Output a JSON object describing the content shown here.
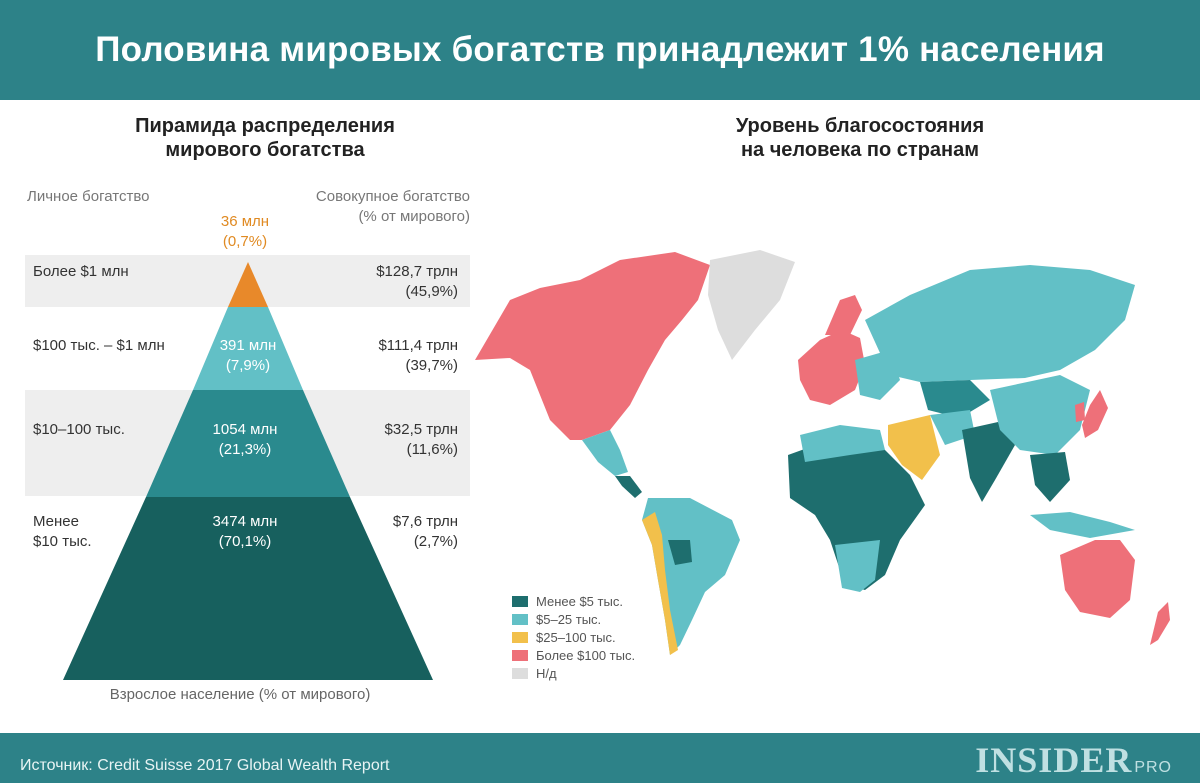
{
  "header": {
    "title": "Половина мировых богатств принадлежит 1% населения"
  },
  "pyramid": {
    "title_line1": "Пирамида распределения",
    "title_line2": "мирового богатства",
    "left_col": "Личное богатство",
    "right_col_line1": "Совокупное богатство",
    "right_col_line2": "(% от мирового)",
    "x_label": "Взрослое население (% от мирового)"
  },
  "map": {
    "title_line1": "Уровень благосостояния",
    "title_line2": "на человека по странам",
    "legend": [
      {
        "label": "Менее $5 тыс.",
        "color": "#1e6e6e"
      },
      {
        "label": "$5–25 тыс.",
        "color": "#62c0c6"
      },
      {
        "label": "$25–100 тыс.",
        "color": "#f2c04b"
      },
      {
        "label": "Более $100 тыс.",
        "color": "#ee7079"
      },
      {
        "label": "Н/д",
        "color": "#dddddd"
      }
    ]
  },
  "chart_data": {
    "type": "pyramid",
    "tiers": [
      {
        "wealth_range": "Более $1 млн",
        "adults": "36 млн",
        "adults_share": "(0,7%)",
        "adults_million": 36,
        "adults_pct": 0.7,
        "total_wealth": "$128,7 трлн",
        "total_wealth_share": "(45,9%)",
        "wealth_trillion": 128.7,
        "wealth_pct": 45.9,
        "color": "#e8892a"
      },
      {
        "wealth_range_line1": "$100 тыс. – $1 млн",
        "adults": "391 млн",
        "adults_share": "(7,9%)",
        "adults_million": 391,
        "adults_pct": 7.9,
        "total_wealth": "$111,4 трлн",
        "total_wealth_share": "(39,7%)",
        "wealth_trillion": 111.4,
        "wealth_pct": 39.7,
        "color": "#62c0c6"
      },
      {
        "wealth_range": "$10–100 тыс.",
        "adults": "1054 млн",
        "adults_share": "(21,3%)",
        "adults_million": 1054,
        "adults_pct": 21.3,
        "total_wealth": "$32,5 трлн",
        "total_wealth_share": "(11,6%)",
        "wealth_trillion": 32.5,
        "wealth_pct": 11.6,
        "color": "#2a8a8e"
      },
      {
        "wealth_range_line1": "Менее",
        "wealth_range_line2": "$10 тыс.",
        "adults": "3474 млн",
        "adults_share": "(70,1%)",
        "adults_million": 3474,
        "adults_pct": 70.1,
        "total_wealth": "$7,6 трлн",
        "total_wealth_share": "(2,7%)",
        "wealth_trillion": 7.6,
        "wealth_pct": 2.7,
        "color": "#17605e"
      }
    ]
  },
  "footer": {
    "source": "Источник: Credit Suisse 2017 Global Wealth Report",
    "logo": "INSIDER",
    "logo_suffix": "PRO"
  }
}
